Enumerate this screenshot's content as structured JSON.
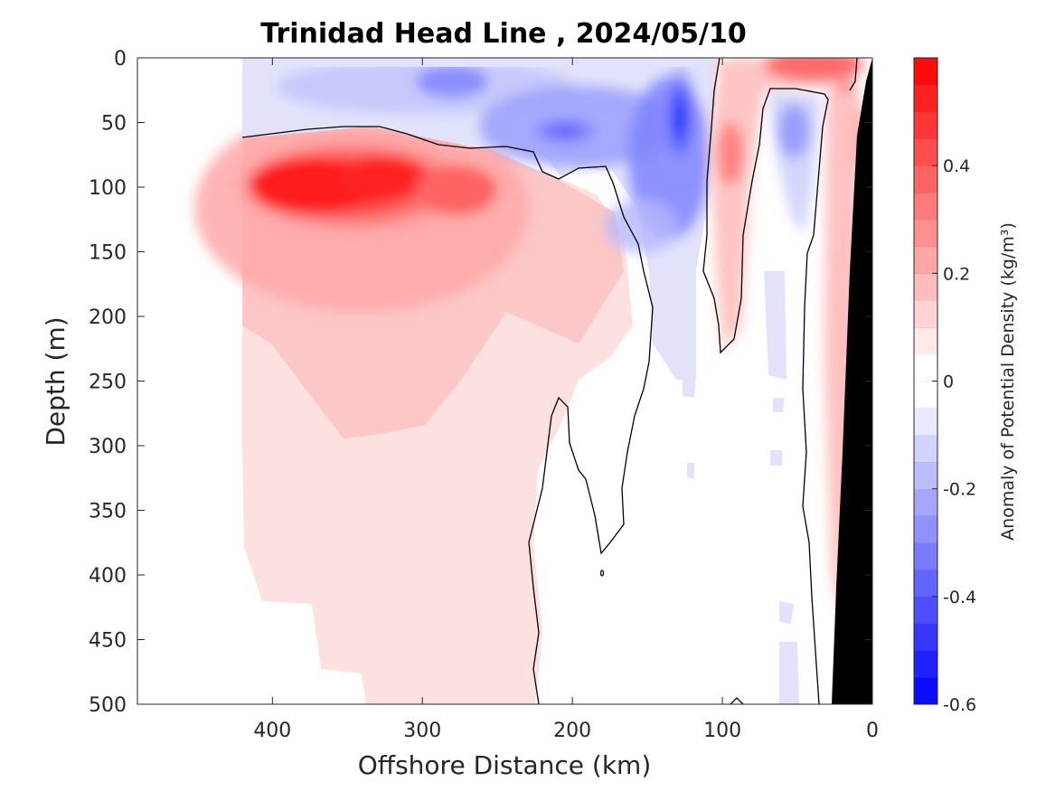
{
  "chart_data": {
    "type": "heatmap",
    "title": "Trinidad Head Line , 2024/05/10",
    "xlabel": "Offshore Distance (km)",
    "ylabel": "Depth (m)",
    "xlim": [
      490,
      0
    ],
    "ylim": [
      0,
      500
    ],
    "x_ticks": [
      400,
      300,
      200,
      100,
      0
    ],
    "y_ticks": [
      0,
      50,
      100,
      150,
      200,
      250,
      300,
      350,
      400,
      450,
      500
    ],
    "colorbar": {
      "label": "Anomaly of Potential Density (kg/m³)",
      "range": [
        -0.6,
        0.6
      ],
      "tick_values": [
        0.4,
        0.2,
        0,
        -0.2,
        -0.4,
        -0.6
      ],
      "tick_labels": [
        "0.4",
        "0.2",
        "0",
        "-0.2",
        "-0.4",
        "-0.6"
      ],
      "levels": 24,
      "low_color": "#0000ff",
      "zero_color": "#ffffff",
      "high_color": "#ff0000"
    },
    "data_extent_km": [
      0,
      420
    ],
    "features": [
      {
        "kind": "positive_core",
        "x_km": 365,
        "depth_m": 100,
        "value": 0.6
      },
      {
        "kind": "positive_tongue",
        "x_km": 350,
        "depth_m": 380,
        "value": 0.05
      },
      {
        "kind": "negative_core",
        "x_km": 125,
        "depth_m": 50,
        "value": -0.55
      },
      {
        "kind": "negative_core",
        "x_km": 205,
        "depth_m": 55,
        "value": -0.4
      },
      {
        "kind": "negative_surface",
        "x_km": 280,
        "depth_m": 25,
        "value": -0.25
      },
      {
        "kind": "positive_core",
        "x_km": 40,
        "depth_m": 5,
        "value": 0.35
      },
      {
        "kind": "positive_core",
        "x_km": 95,
        "depth_m": 70,
        "value": 0.3
      },
      {
        "kind": "positive_core",
        "x_km": 20,
        "depth_m": 80,
        "value": 0.4
      },
      {
        "kind": "negative_core",
        "x_km": 55,
        "depth_m": 60,
        "value": -0.2
      }
    ],
    "bathymetry_color": "#000000"
  }
}
